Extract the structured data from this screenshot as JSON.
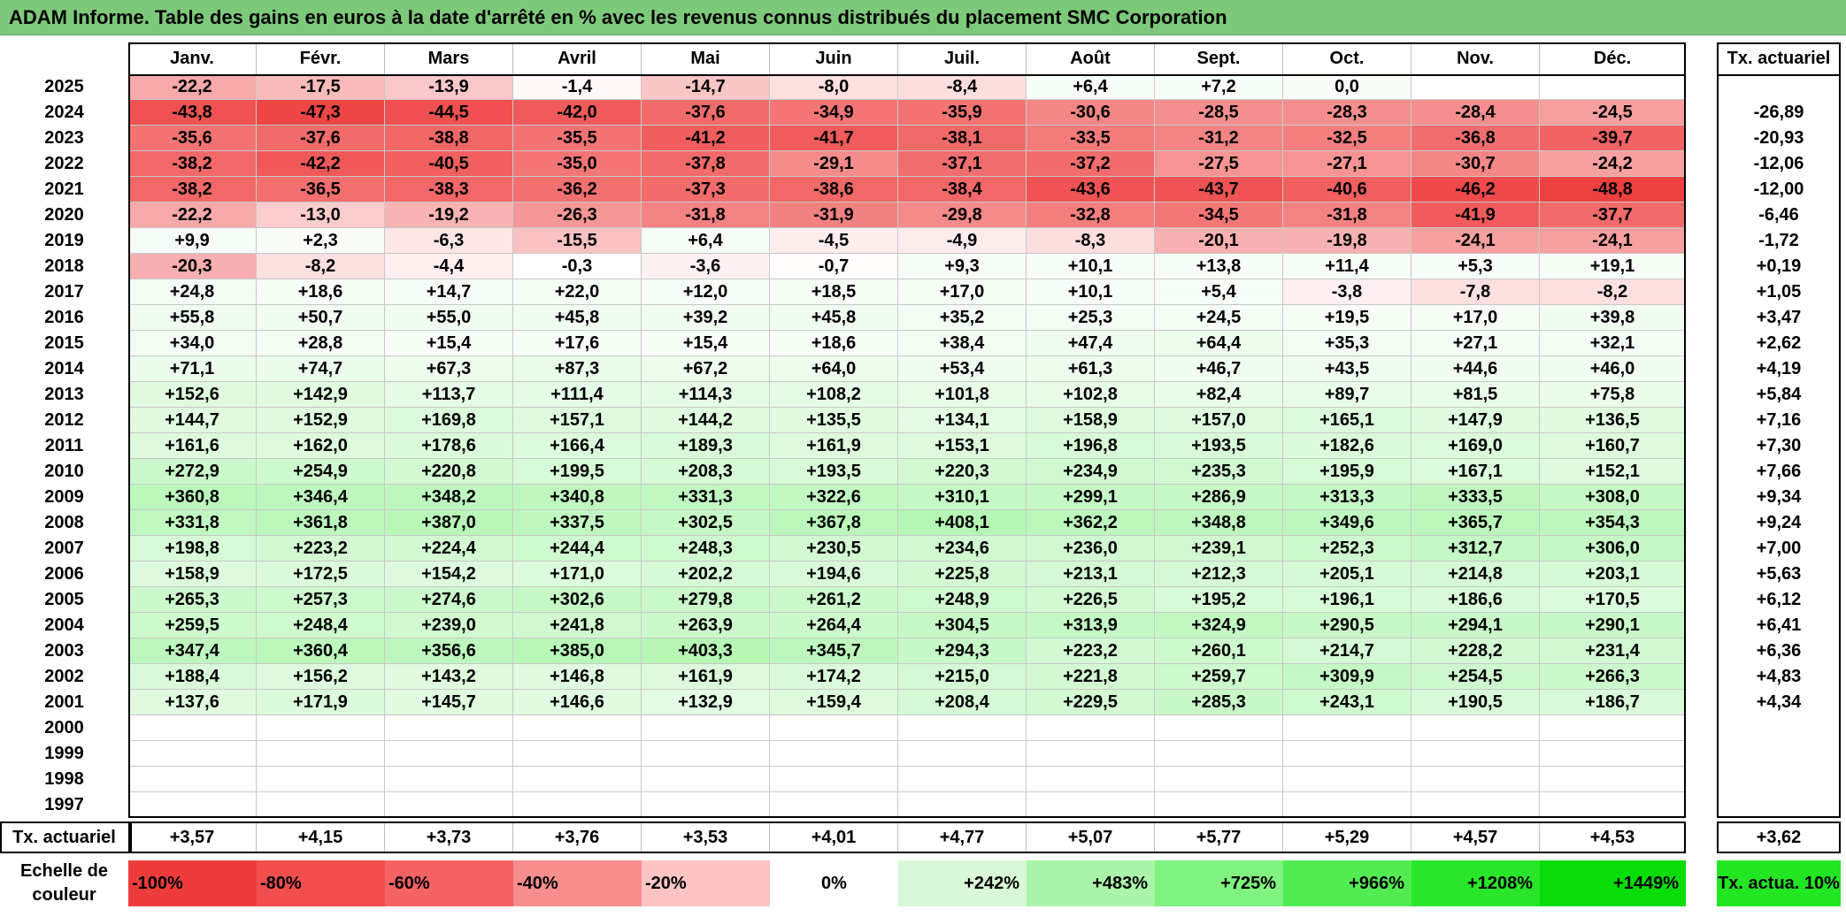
{
  "title": "ADAM Informe. Table des gains en euros à la date d'arrêté en % avec les revenus connus distribués du placement SMC Corporation",
  "months": [
    "Janv.",
    "Févr.",
    "Mars",
    "Avril",
    "Mai",
    "Juin",
    "Juil.",
    "Août",
    "Sept.",
    "Oct.",
    "Nov.",
    "Déc."
  ],
  "annual_header": "Tx. actuariel",
  "rows": [
    {
      "year": "2025",
      "values": [
        "-22,2",
        "-17,5",
        "-13,9",
        "-1,4",
        "-14,7",
        "-8,0",
        "-8,4",
        "+6,4",
        "+7,2",
        "0,0",
        "",
        ""
      ],
      "annual": ""
    },
    {
      "year": "2024",
      "values": [
        "-43,8",
        "-47,3",
        "-44,5",
        "-42,0",
        "-37,6",
        "-34,9",
        "-35,9",
        "-30,6",
        "-28,5",
        "-28,3",
        "-28,4",
        "-24,5"
      ],
      "annual": "-26,89"
    },
    {
      "year": "2023",
      "values": [
        "-35,6",
        "-37,6",
        "-38,8",
        "-35,5",
        "-41,2",
        "-41,7",
        "-38,1",
        "-33,5",
        "-31,2",
        "-32,5",
        "-36,8",
        "-39,7"
      ],
      "annual": "-20,93"
    },
    {
      "year": "2022",
      "values": [
        "-38,2",
        "-42,2",
        "-40,5",
        "-35,0",
        "-37,8",
        "-29,1",
        "-37,1",
        "-37,2",
        "-27,5",
        "-27,1",
        "-30,7",
        "-24,2"
      ],
      "annual": "-12,06"
    },
    {
      "year": "2021",
      "values": [
        "-38,2",
        "-36,5",
        "-38,3",
        "-36,2",
        "-37,3",
        "-38,6",
        "-38,4",
        "-43,6",
        "-43,7",
        "-40,6",
        "-46,2",
        "-48,8"
      ],
      "annual": "-12,00"
    },
    {
      "year": "2020",
      "values": [
        "-22,2",
        "-13,0",
        "-19,2",
        "-26,3",
        "-31,8",
        "-31,9",
        "-29,8",
        "-32,8",
        "-34,5",
        "-31,8",
        "-41,9",
        "-37,7"
      ],
      "annual": "-6,46"
    },
    {
      "year": "2019",
      "values": [
        "+9,9",
        "+2,3",
        "-6,3",
        "-15,5",
        "+6,4",
        "-4,5",
        "-4,9",
        "-8,3",
        "-20,1",
        "-19,8",
        "-24,1",
        "-24,1"
      ],
      "annual": "-1,72"
    },
    {
      "year": "2018",
      "values": [
        "-20,3",
        "-8,2",
        "-4,4",
        "-0,3",
        "-3,6",
        "-0,7",
        "+9,3",
        "+10,1",
        "+13,8",
        "+11,4",
        "+5,3",
        "+19,1"
      ],
      "annual": "+0,19"
    },
    {
      "year": "2017",
      "values": [
        "+24,8",
        "+18,6",
        "+14,7",
        "+22,0",
        "+12,0",
        "+18,5",
        "+17,0",
        "+10,1",
        "+5,4",
        "-3,8",
        "-7,8",
        "-8,2"
      ],
      "annual": "+1,05"
    },
    {
      "year": "2016",
      "values": [
        "+55,8",
        "+50,7",
        "+55,0",
        "+45,8",
        "+39,2",
        "+45,8",
        "+35,2",
        "+25,3",
        "+24,5",
        "+19,5",
        "+17,0",
        "+39,8"
      ],
      "annual": "+3,47"
    },
    {
      "year": "2015",
      "values": [
        "+34,0",
        "+28,8",
        "+15,4",
        "+17,6",
        "+15,4",
        "+18,6",
        "+38,4",
        "+47,4",
        "+64,4",
        "+35,3",
        "+27,1",
        "+32,1"
      ],
      "annual": "+2,62"
    },
    {
      "year": "2014",
      "values": [
        "+71,1",
        "+74,7",
        "+67,3",
        "+87,3",
        "+67,2",
        "+64,0",
        "+53,4",
        "+61,3",
        "+46,7",
        "+43,5",
        "+44,6",
        "+46,0"
      ],
      "annual": "+4,19"
    },
    {
      "year": "2013",
      "values": [
        "+152,6",
        "+142,9",
        "+113,7",
        "+111,4",
        "+114,3",
        "+108,2",
        "+101,8",
        "+102,8",
        "+82,4",
        "+89,7",
        "+81,5",
        "+75,8"
      ],
      "annual": "+5,84"
    },
    {
      "year": "2012",
      "values": [
        "+144,7",
        "+152,9",
        "+169,8",
        "+157,1",
        "+144,2",
        "+135,5",
        "+134,1",
        "+158,9",
        "+157,0",
        "+165,1",
        "+147,9",
        "+136,5"
      ],
      "annual": "+7,16"
    },
    {
      "year": "2011",
      "values": [
        "+161,6",
        "+162,0",
        "+178,6",
        "+166,4",
        "+189,3",
        "+161,9",
        "+153,1",
        "+196,8",
        "+193,5",
        "+182,6",
        "+169,0",
        "+160,7"
      ],
      "annual": "+7,30"
    },
    {
      "year": "2010",
      "values": [
        "+272,9",
        "+254,9",
        "+220,8",
        "+199,5",
        "+208,3",
        "+193,5",
        "+220,3",
        "+234,9",
        "+235,3",
        "+195,9",
        "+167,1",
        "+152,1"
      ],
      "annual": "+7,66"
    },
    {
      "year": "2009",
      "values": [
        "+360,8",
        "+346,4",
        "+348,2",
        "+340,8",
        "+331,3",
        "+322,6",
        "+310,1",
        "+299,1",
        "+286,9",
        "+313,3",
        "+333,5",
        "+308,0"
      ],
      "annual": "+9,34"
    },
    {
      "year": "2008",
      "values": [
        "+331,8",
        "+361,8",
        "+387,0",
        "+337,5",
        "+302,5",
        "+367,8",
        "+408,1",
        "+362,2",
        "+348,8",
        "+349,6",
        "+365,7",
        "+354,3"
      ],
      "annual": "+9,24"
    },
    {
      "year": "2007",
      "values": [
        "+198,8",
        "+223,2",
        "+224,4",
        "+244,4",
        "+248,3",
        "+230,5",
        "+234,6",
        "+236,0",
        "+239,1",
        "+252,3",
        "+312,7",
        "+306,0"
      ],
      "annual": "+7,00"
    },
    {
      "year": "2006",
      "values": [
        "+158,9",
        "+172,5",
        "+154,2",
        "+171,0",
        "+202,2",
        "+194,6",
        "+225,8",
        "+213,1",
        "+212,3",
        "+205,1",
        "+214,8",
        "+203,1"
      ],
      "annual": "+5,63"
    },
    {
      "year": "2005",
      "values": [
        "+265,3",
        "+257,3",
        "+274,6",
        "+302,6",
        "+279,8",
        "+261,2",
        "+248,9",
        "+226,5",
        "+195,2",
        "+196,1",
        "+186,6",
        "+170,5"
      ],
      "annual": "+6,12"
    },
    {
      "year": "2004",
      "values": [
        "+259,5",
        "+248,4",
        "+239,0",
        "+241,8",
        "+263,9",
        "+264,4",
        "+304,5",
        "+313,9",
        "+324,9",
        "+290,5",
        "+294,1",
        "+290,1"
      ],
      "annual": "+6,41"
    },
    {
      "year": "2003",
      "values": [
        "+347,4",
        "+360,4",
        "+356,6",
        "+385,0",
        "+403,3",
        "+345,7",
        "+294,3",
        "+223,2",
        "+260,1",
        "+214,7",
        "+228,2",
        "+231,4"
      ],
      "annual": "+6,36"
    },
    {
      "year": "2002",
      "values": [
        "+188,4",
        "+156,2",
        "+143,2",
        "+146,8",
        "+161,9",
        "+174,2",
        "+215,0",
        "+221,8",
        "+259,7",
        "+309,9",
        "+254,5",
        "+266,3"
      ],
      "annual": "+4,83"
    },
    {
      "year": "2001",
      "values": [
        "+137,6",
        "+171,9",
        "+145,7",
        "+146,6",
        "+132,9",
        "+159,4",
        "+208,4",
        "+229,5",
        "+285,3",
        "+243,1",
        "+190,5",
        "+186,7"
      ],
      "annual": "+4,34"
    },
    {
      "year": "2000",
      "values": [
        "",
        "",
        "",
        "",
        "",
        "",
        "",
        "",
        "",
        "",
        "",
        ""
      ],
      "annual": ""
    },
    {
      "year": "1999",
      "values": [
        "",
        "",
        "",
        "",
        "",
        "",
        "",
        "",
        "",
        "",
        "",
        ""
      ],
      "annual": ""
    },
    {
      "year": "1998",
      "values": [
        "",
        "",
        "",
        "",
        "",
        "",
        "",
        "",
        "",
        "",
        "",
        ""
      ],
      "annual": ""
    },
    {
      "year": "1997",
      "values": [
        "",
        "",
        "",
        "",
        "",
        "",
        "",
        "",
        "",
        "",
        "",
        ""
      ],
      "annual": ""
    }
  ],
  "footer": {
    "label": "Tx. actuariel",
    "values": [
      "+3,57",
      "+4,15",
      "+3,73",
      "+3,76",
      "+3,53",
      "+4,01",
      "+4,77",
      "+5,07",
      "+5,77",
      "+5,29",
      "+4,57",
      "+4,53"
    ],
    "annual": "+3,62"
  },
  "scale": {
    "label": "Echelle de couleur",
    "items": [
      "-100%",
      "-80%",
      "-60%",
      "-40%",
      "-20%",
      "0%",
      "+242%",
      "+483%",
      "+725%",
      "+966%",
      "+1208%",
      "+1449%"
    ],
    "colors": [
      "#ee3c3c",
      "#f24e4e",
      "#f56262",
      "#f98e8e",
      "#fdc4c4",
      "#ffffff",
      "#d8f8d8",
      "#aaf5aa",
      "#7ff27f",
      "#52ec52",
      "#2ae62a",
      "#08dd08"
    ],
    "annual_label": "Tx. actua. 10%",
    "annual_color": "#22e622"
  }
}
